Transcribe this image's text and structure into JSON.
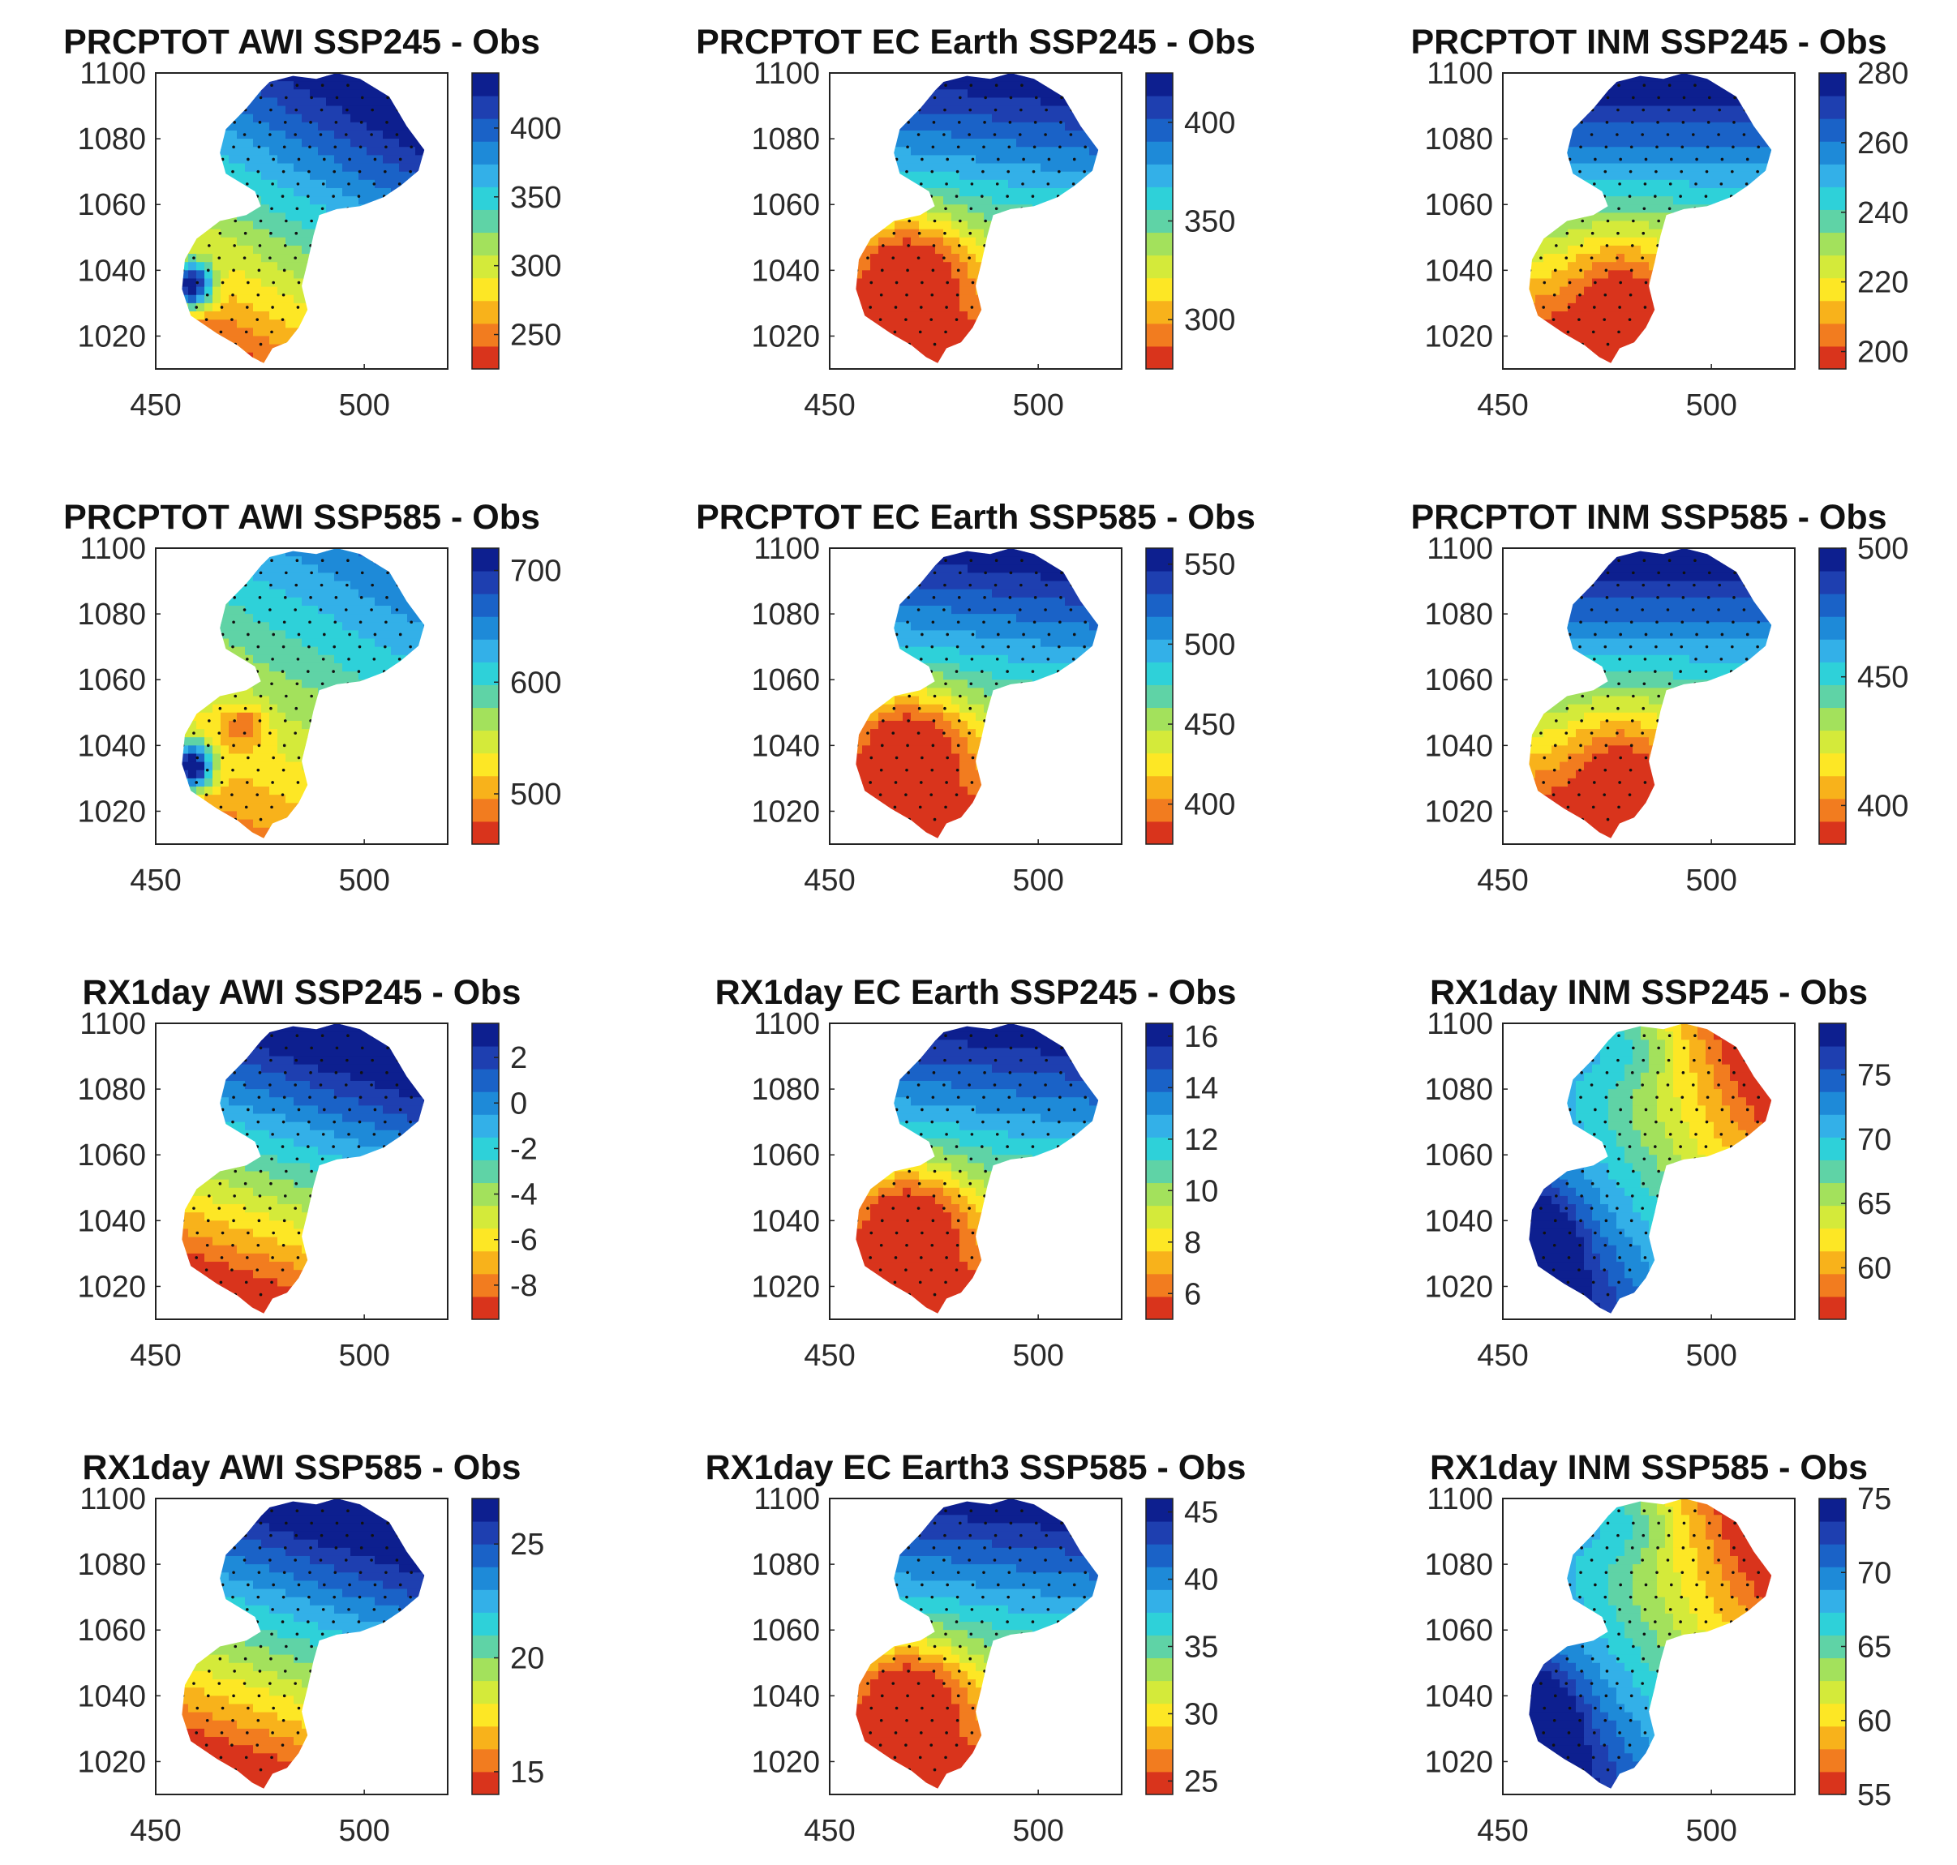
{
  "figure": {
    "x_ticks": [
      450,
      500
    ],
    "y_ticks": [
      1020,
      1040,
      1060,
      1080,
      1100
    ],
    "xlim": [
      450,
      520
    ],
    "ylim": [
      1010,
      1100
    ],
    "colormap": [
      "#d9341c",
      "#f27c1f",
      "#f8b21b",
      "#fde725",
      "#d4ea3a",
      "#a3e15c",
      "#5fd3a6",
      "#2ed1d9",
      "#33b0e8",
      "#1e8ad8",
      "#1a62c7",
      "#1e3fb0",
      "#0d1f8f"
    ]
  },
  "chart_data": [
    {
      "type": "heatmap",
      "title": "PRCPTOT AWI SSP245 - Obs",
      "xlabel": "",
      "ylabel": "",
      "xlim": [
        450,
        520
      ],
      "ylim": [
        1010,
        1100
      ],
      "clim": [
        225,
        440
      ],
      "colorbar_ticks": [
        250,
        300,
        350,
        400
      ],
      "pattern": "awi-north-high-southwest-spot"
    },
    {
      "type": "heatmap",
      "title": "PRCPTOT EC Earth SSP245 - Obs",
      "xlabel": "",
      "ylabel": "",
      "xlim": [
        450,
        520
      ],
      "ylim": [
        1010,
        1100
      ],
      "clim": [
        275,
        425
      ],
      "colorbar_ticks": [
        300,
        350,
        400
      ],
      "pattern": "ec-north-high-south-low"
    },
    {
      "type": "heatmap",
      "title": "PRCPTOT INM SSP245 - Obs",
      "xlabel": "",
      "ylabel": "",
      "xlim": [
        450,
        520
      ],
      "ylim": [
        1010,
        1100
      ],
      "clim": [
        195,
        280
      ],
      "colorbar_ticks": [
        200,
        220,
        240,
        260,
        280
      ],
      "pattern": "inm-north-high-south-low"
    },
    {
      "type": "heatmap",
      "title": "PRCPTOT AWI SSP585 - Obs",
      "xlabel": "",
      "ylabel": "",
      "xlim": [
        450,
        520
      ],
      "ylim": [
        1010,
        1100
      ],
      "clim": [
        455,
        720
      ],
      "colorbar_ticks": [
        500,
        600,
        700
      ],
      "pattern": "awi-mild-north-southwest-spot"
    },
    {
      "type": "heatmap",
      "title": "PRCPTOT EC Earth SSP585 - Obs",
      "xlabel": "",
      "ylabel": "",
      "xlim": [
        450,
        520
      ],
      "ylim": [
        1010,
        1100
      ],
      "clim": [
        375,
        560
      ],
      "colorbar_ticks": [
        400,
        450,
        500,
        550
      ],
      "pattern": "ec-north-high-south-low"
    },
    {
      "type": "heatmap",
      "title": "PRCPTOT INM SSP585 - Obs",
      "xlabel": "",
      "ylabel": "",
      "xlim": [
        450,
        520
      ],
      "ylim": [
        1010,
        1100
      ],
      "clim": [
        385,
        500
      ],
      "colorbar_ticks": [
        400,
        450,
        500
      ],
      "pattern": "inm-north-high-south-low"
    },
    {
      "type": "heatmap",
      "title": "RX1day AWI SSP245 - Obs",
      "xlabel": "",
      "ylabel": "",
      "xlim": [
        450,
        520
      ],
      "ylim": [
        1010,
        1100
      ],
      "clim": [
        -9.5,
        3.5
      ],
      "colorbar_ticks": [
        -8,
        -6,
        -4,
        -2,
        0,
        2
      ],
      "pattern": "awi-north-high-south-low"
    },
    {
      "type": "heatmap",
      "title": "RX1day EC Earth SSP245 - Obs",
      "xlabel": "",
      "ylabel": "",
      "xlim": [
        450,
        520
      ],
      "ylim": [
        1010,
        1100
      ],
      "clim": [
        5,
        16.5
      ],
      "colorbar_ticks": [
        6,
        8,
        10,
        12,
        14,
        16
      ],
      "pattern": "ec-north-high-south-low"
    },
    {
      "type": "heatmap",
      "title": "RX1day INM SSP245 - Obs",
      "xlabel": "",
      "ylabel": "",
      "xlim": [
        450,
        520
      ],
      "ylim": [
        1010,
        1100
      ],
      "clim": [
        56,
        79
      ],
      "colorbar_ticks": [
        60,
        65,
        70,
        75
      ],
      "pattern": "inm-southwest-high-east-low"
    },
    {
      "type": "heatmap",
      "title": "RX1day AWI SSP585 - Obs",
      "xlabel": "",
      "ylabel": "",
      "xlim": [
        450,
        520
      ],
      "ylim": [
        1010,
        1100
      ],
      "clim": [
        14,
        27
      ],
      "colorbar_ticks": [
        15,
        20,
        25
      ],
      "pattern": "awi-north-high-south-low"
    },
    {
      "type": "heatmap",
      "title": "RX1day EC Earth3 SSP585 - Obs",
      "xlabel": "",
      "ylabel": "",
      "xlim": [
        450,
        520
      ],
      "ylim": [
        1010,
        1100
      ],
      "clim": [
        24,
        46
      ],
      "colorbar_ticks": [
        25,
        30,
        35,
        40,
        45
      ],
      "pattern": "ec-north-high-south-low"
    },
    {
      "type": "heatmap",
      "title": "RX1day INM SSP585 - Obs",
      "xlabel": "",
      "ylabel": "",
      "xlim": [
        450,
        520
      ],
      "ylim": [
        1010,
        1100
      ],
      "clim": [
        55,
        75
      ],
      "colorbar_ticks": [
        55,
        60,
        65,
        70,
        75
      ],
      "pattern": "inm-southwest-high-east-low"
    }
  ]
}
